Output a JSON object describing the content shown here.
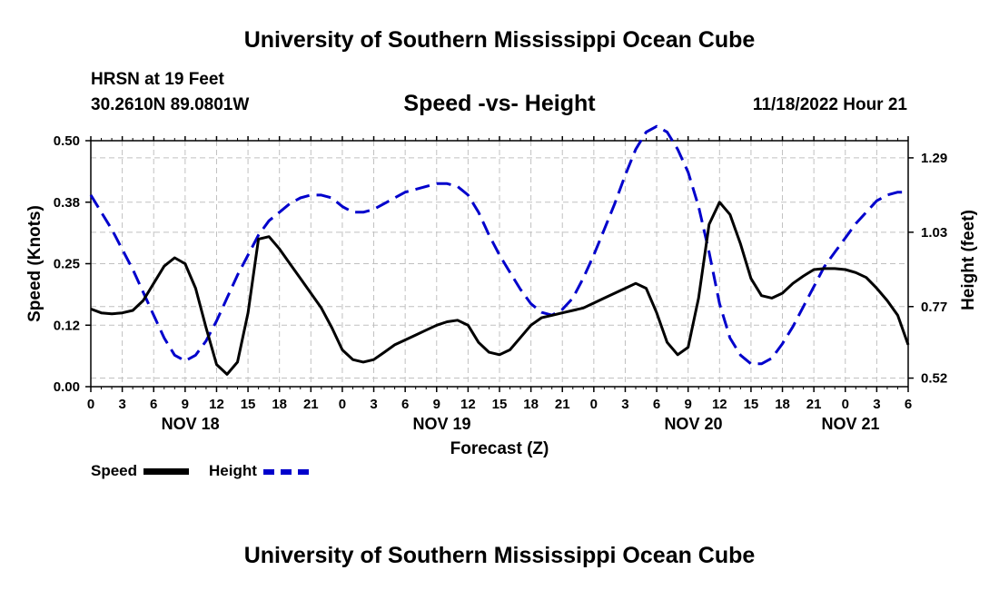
{
  "header": {
    "title": "University of Southern Mississippi Ocean Cube",
    "station": "HRSN at 19 Feet",
    "coords": "30.2610N  89.0801W",
    "subtitle": "Speed -vs- Height",
    "datetime": "11/18/2022 Hour 21"
  },
  "footer": {
    "title": "University of Southern Mississippi Ocean Cube"
  },
  "legend": {
    "speed_label": "Speed",
    "height_label": "Height"
  },
  "colors": {
    "speed": "#000000",
    "height": "#0000cc",
    "grid": "#c0c0c0"
  },
  "chart_data": {
    "type": "line",
    "title": "Speed -vs- Height",
    "xlabel": "Forecast (Z)",
    "ylabel": "Speed (Knots)",
    "y2label": "Height (feet)",
    "x_range_hours": [
      0,
      78
    ],
    "x_tick_step_hours": 3,
    "x_tick_labels": [
      "0",
      "3",
      "6",
      "9",
      "12",
      "15",
      "18",
      "21",
      "0",
      "3",
      "6",
      "9",
      "12",
      "15",
      "18",
      "21",
      "0",
      "3",
      "6",
      "9",
      "12",
      "15",
      "18",
      "21",
      "0",
      "3",
      "6"
    ],
    "day_labels": [
      {
        "label": "NOV 18",
        "hour": 9.5
      },
      {
        "label": "NOV 19",
        "hour": 33.5
      },
      {
        "label": "NOV 20",
        "hour": 57.5
      },
      {
        "label": "NOV 21",
        "hour": 72.5
      }
    ],
    "ylim": [
      0,
      0.5
    ],
    "y_ticks": [
      0.0,
      0.125,
      0.25,
      0.375,
      0.5
    ],
    "y_tick_labels": [
      "0.00",
      "0.12",
      "0.25",
      "0.38",
      "0.50"
    ],
    "y2lim": [
      0.49,
      1.35
    ],
    "y2_ticks": [
      0.52,
      0.77,
      1.03,
      1.29
    ],
    "y2_tick_labels": [
      "0.52",
      "0.77",
      "1.03",
      "1.29"
    ],
    "series": [
      {
        "name": "Speed",
        "axis": "left",
        "x": [
          0,
          1,
          2,
          3,
          4,
          5,
          6,
          7,
          8,
          9,
          10,
          11,
          12,
          13,
          14,
          15,
          16,
          17,
          18,
          19,
          20,
          21,
          22,
          23,
          24,
          25,
          26,
          27,
          28,
          29,
          30,
          31,
          32,
          33,
          34,
          35,
          36,
          37,
          38,
          39,
          40,
          41,
          42,
          43,
          44,
          45,
          46,
          47,
          48,
          49,
          50,
          51,
          52,
          53,
          54,
          55,
          56,
          57,
          58,
          59,
          60,
          61,
          62,
          63,
          64,
          65,
          66,
          67,
          68,
          69,
          70,
          71,
          72,
          73,
          74,
          75,
          76,
          77,
          78
        ],
        "values": [
          0.158,
          0.15,
          0.148,
          0.15,
          0.155,
          0.175,
          0.21,
          0.245,
          0.262,
          0.25,
          0.2,
          0.12,
          0.045,
          0.025,
          0.05,
          0.15,
          0.3,
          0.305,
          0.28,
          0.25,
          0.22,
          0.19,
          0.16,
          0.12,
          0.075,
          0.055,
          0.05,
          0.055,
          0.07,
          0.085,
          0.095,
          0.105,
          0.115,
          0.125,
          0.132,
          0.135,
          0.125,
          0.09,
          0.07,
          0.065,
          0.075,
          0.1,
          0.125,
          0.14,
          0.145,
          0.15,
          0.155,
          0.16,
          0.17,
          0.18,
          0.19,
          0.2,
          0.21,
          0.2,
          0.15,
          0.09,
          0.065,
          0.08,
          0.18,
          0.33,
          0.375,
          0.35,
          0.29,
          0.22,
          0.185,
          0.18,
          0.19,
          0.21,
          0.225,
          0.238,
          0.24,
          0.24,
          0.238,
          0.232,
          0.222,
          0.2,
          0.175,
          0.145,
          0.085
        ]
      },
      {
        "name": "Height",
        "axis": "right",
        "x": [
          0,
          1,
          2,
          3,
          4,
          5,
          6,
          7,
          8,
          9,
          10,
          11,
          12,
          13,
          14,
          15,
          16,
          17,
          18,
          19,
          20,
          21,
          22,
          23,
          24,
          25,
          26,
          27,
          28,
          29,
          30,
          31,
          32,
          33,
          34,
          35,
          36,
          37,
          38,
          39,
          40,
          41,
          42,
          43,
          44,
          45,
          46,
          47,
          48,
          49,
          50,
          51,
          52,
          53,
          54,
          55,
          56,
          57,
          58,
          59,
          60,
          61,
          62,
          63,
          64,
          65,
          66,
          67,
          68,
          69,
          70,
          71,
          72,
          73,
          74,
          75,
          76,
          77,
          78
        ],
        "values": [
          1.16,
          1.1,
          1.04,
          0.97,
          0.9,
          0.82,
          0.74,
          0.66,
          0.6,
          0.58,
          0.6,
          0.65,
          0.72,
          0.8,
          0.88,
          0.95,
          1.02,
          1.07,
          1.1,
          1.13,
          1.15,
          1.16,
          1.16,
          1.15,
          1.12,
          1.1,
          1.1,
          1.11,
          1.13,
          1.15,
          1.17,
          1.18,
          1.19,
          1.2,
          1.2,
          1.19,
          1.16,
          1.1,
          1.02,
          0.95,
          0.89,
          0.83,
          0.78,
          0.75,
          0.74,
          0.76,
          0.8,
          0.87,
          0.95,
          1.04,
          1.13,
          1.23,
          1.32,
          1.38,
          1.4,
          1.38,
          1.32,
          1.24,
          1.12,
          0.96,
          0.78,
          0.66,
          0.6,
          0.57,
          0.57,
          0.59,
          0.64,
          0.7,
          0.77,
          0.84,
          0.91,
          0.96,
          1.01,
          1.06,
          1.1,
          1.14,
          1.16,
          1.17,
          1.17
        ]
      }
    ]
  }
}
